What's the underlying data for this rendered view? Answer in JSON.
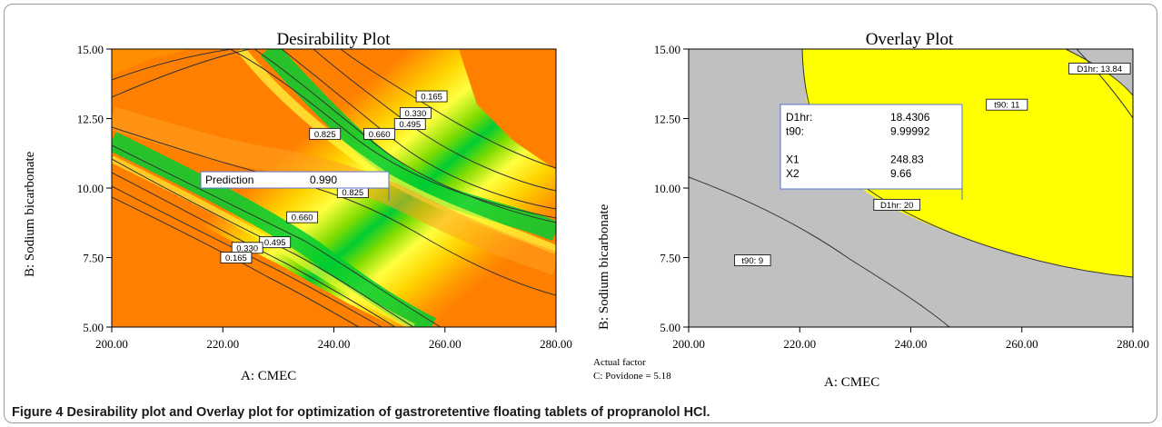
{
  "figure": {
    "caption_label": "Figure 4",
    "caption_text": "Desirability plot and Overlay plot for optimization of gastroretentive floating tablets of propranolol HCl."
  },
  "colors": {
    "orange": "#ff8000",
    "yellow": "#ffff00",
    "green": "#00cc00",
    "gray": "#c0c0c0",
    "flag_border": "#5a6fd6"
  },
  "chart_data": [
    {
      "type": "heatmap",
      "title": "Desirability Plot",
      "xlabel": "A: CMEC",
      "ylabel": "B: Sodium bicarbonate",
      "xlim": [
        200,
        280
      ],
      "ylim": [
        5,
        15
      ],
      "x_ticks": [
        "200.00",
        "220.00",
        "240.00",
        "260.00",
        "280.00"
      ],
      "y_ticks": [
        "5.00",
        "7.50",
        "10.00",
        "12.50",
        "15.00"
      ],
      "contour_labels": [
        {
          "text": "0.165",
          "x": 257.6,
          "y": 13.3
        },
        {
          "text": "0.330",
          "x": 254.7,
          "y": 12.7
        },
        {
          "text": "0.495",
          "x": 253.7,
          "y": 12.3
        },
        {
          "text": "0.660",
          "x": 248.2,
          "y": 11.95
        },
        {
          "text": "0.825",
          "x": 238.4,
          "y": 11.95
        },
        {
          "text": "0.825",
          "x": 243.4,
          "y": 9.85
        },
        {
          "text": "0.660",
          "x": 234.3,
          "y": 8.95
        },
        {
          "text": "0.495",
          "x": 229.4,
          "y": 8.05
        },
        {
          "text": "0.330",
          "x": 224.4,
          "y": 7.85
        },
        {
          "text": "0.165",
          "x": 222.4,
          "y": 7.5
        }
      ],
      "flag": {
        "label": "Prediction",
        "value": "0.990",
        "x": 248.83,
        "y": 9.66
      }
    },
    {
      "type": "overlay",
      "title": "Overlay Plot",
      "xlabel": "A: CMEC",
      "ylabel": "B: Sodium bicarbonate",
      "xlim": [
        200,
        280
      ],
      "ylim": [
        5,
        15
      ],
      "x_ticks": [
        "200.00",
        "220.00",
        "240.00",
        "260.00",
        "280.00"
      ],
      "y_ticks": [
        "5.00",
        "7.50",
        "10.00",
        "12.50",
        "15.00"
      ],
      "contour_labels": [
        {
          "text": "D1hr: 13.84",
          "x": 274.0,
          "y": 14.3
        },
        {
          "text": "t90: 11",
          "x": 257.3,
          "y": 13.0
        },
        {
          "text": "D1hr: 20",
          "x": 237.5,
          "y": 9.4
        },
        {
          "text": "t90: 9",
          "x": 211.5,
          "y": 7.4
        }
      ],
      "flag": {
        "rows": [
          {
            "k": "D1hr:",
            "v": "18.4306"
          },
          {
            "k": "t90:",
            "v": "9.99992"
          },
          {
            "k": "",
            "v": ""
          },
          {
            "k": "X1",
            "v": "248.83"
          },
          {
            "k": "X2",
            "v": "9.66"
          }
        ],
        "x": 248.83,
        "y": 9.66
      },
      "actual_factor_label": "Actual factor",
      "actual_factor_value": "C: Povidone = 5.18"
    }
  ]
}
